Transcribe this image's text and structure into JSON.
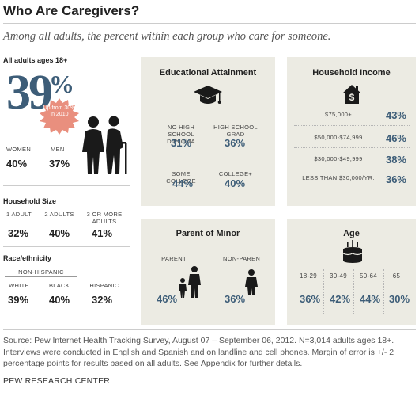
{
  "title": "Who Are Caregivers?",
  "subtitle": "Among all adults, the percent within each group who care for someone.",
  "overall": {
    "label": "All adults ages 18+",
    "value": "39",
    "pct": "%",
    "note": "Up from 30% in 2010"
  },
  "gender": {
    "women_label": "WOMEN",
    "women_value": "40%",
    "men_label": "MEN",
    "men_value": "37%"
  },
  "household_size": {
    "title": "Household Size",
    "groups": [
      {
        "label": "1 ADULT",
        "value": "32%"
      },
      {
        "label": "2 ADULTS",
        "value": "40%"
      },
      {
        "label": "3 OR MORE ADULTS",
        "value": "41%"
      }
    ]
  },
  "race": {
    "title": "Race/ethnicity",
    "subhead": "NON-HISPANIC",
    "groups": [
      {
        "label": "WHITE",
        "value": "39%"
      },
      {
        "label": "BLACK",
        "value": "40%"
      },
      {
        "label": "HISPANIC",
        "value": "32%"
      }
    ]
  },
  "education": {
    "title": "Educational Attainment",
    "groups": [
      {
        "label": "NO HIGH SCHOOL DIPLOMA",
        "value": "31%"
      },
      {
        "label": "HIGH SCHOOL GRAD",
        "value": "36%"
      },
      {
        "label": "SOME COLLEGE",
        "value": "44%"
      },
      {
        "label": "COLLEGE+",
        "value": "40%"
      }
    ]
  },
  "income": {
    "title": "Household Income",
    "groups": [
      {
        "label": "$75,000+",
        "value": "43%"
      },
      {
        "label": "$50,000-$74,999",
        "value": "46%"
      },
      {
        "label": "$30,000-$49,999",
        "value": "38%"
      },
      {
        "label": "LESS THAN $30,000/YR.",
        "value": "36%"
      }
    ]
  },
  "parent": {
    "title": "Parent of Minor",
    "groups": [
      {
        "label": "PARENT",
        "value": "46%"
      },
      {
        "label": "NON-PARENT",
        "value": "36%"
      }
    ]
  },
  "age": {
    "title": "Age",
    "groups": [
      {
        "label": "18-29",
        "value": "36%"
      },
      {
        "label": "30-49",
        "value": "42%"
      },
      {
        "label": "50-64",
        "value": "44%"
      },
      {
        "label": "65+",
        "value": "30%"
      }
    ]
  },
  "source": "Source: Pew Internet Health Tracking Survey, August 07 – September 06, 2012. N=3,014 adults ages 18+. Interviews were conducted in English and Spanish and on landline and cell phones.  Margin of error is +/- 2 percentage points for results based on all adults. See Appendix for further details.",
  "organization": "PEW RESEARCH CENTER",
  "colors": {
    "accent": "#3d5d78",
    "burst": "#e98f7e",
    "panel": "#ecebe3"
  },
  "chart_data": {
    "type": "table",
    "title": "Who Are Caregivers?",
    "unit": "percent",
    "overall": 39,
    "groups": {
      "gender": {
        "Women": 40,
        "Men": 37
      },
      "household_size": {
        "1 adult": 32,
        "2 adults": 40,
        "3 or more adults": 41
      },
      "race_ethnicity": {
        "White (non-Hispanic)": 39,
        "Black (non-Hispanic)": 40,
        "Hispanic": 32
      },
      "education": {
        "No high school diploma": 31,
        "High school grad": 36,
        "Some college": 44,
        "College+": 40
      },
      "household_income": {
        "$75,000+": 43,
        "$50,000-$74,999": 46,
        "$30,000-$49,999": 38,
        "Less than $30,000/yr.": 36
      },
      "parent_of_minor": {
        "Parent": 46,
        "Non-parent": 36
      },
      "age": {
        "18-29": 36,
        "30-49": 42,
        "50-64": 44,
        "65+": 30
      }
    }
  }
}
